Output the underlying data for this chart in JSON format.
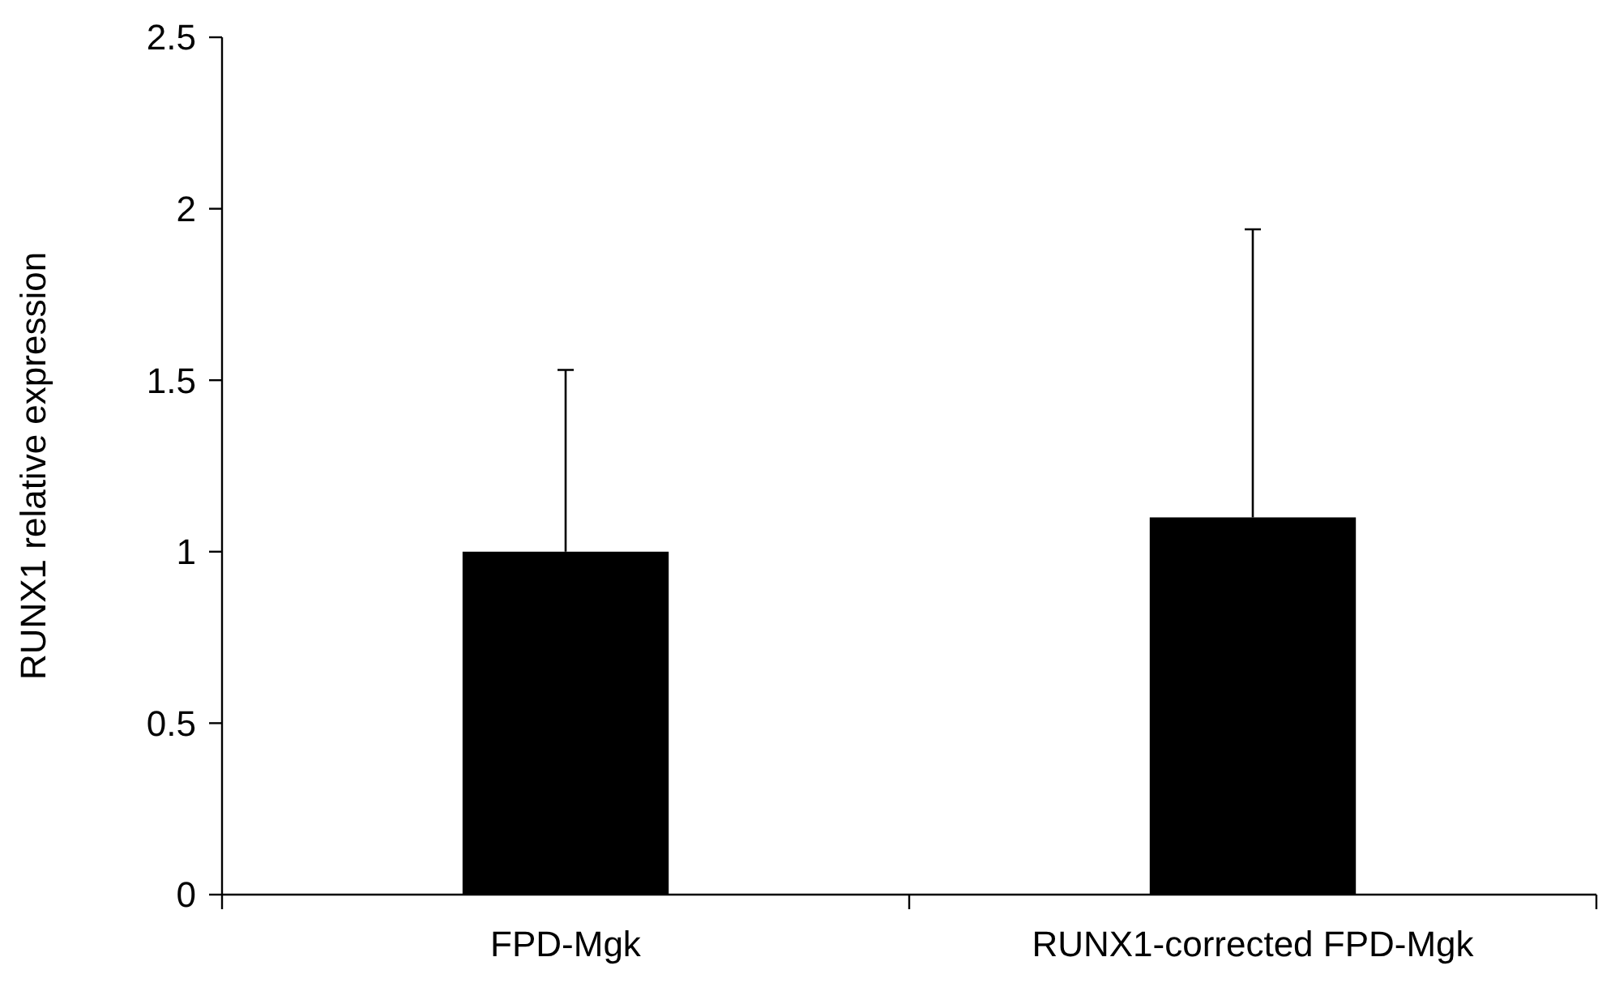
{
  "chart_data": {
    "type": "bar",
    "ylabel": "RUNX1 relative expression",
    "categories": [
      "FPD-Mgk",
      "RUNX1-corrected FPD-Mgk"
    ],
    "values": [
      1,
      1.1
    ],
    "color": "#000000",
    "errors": [
      [
        1,
        1.53
      ],
      [
        1.1,
        1.94
      ]
    ],
    "ylim": [
      0,
      2.5
    ],
    "yticks": [
      0,
      0.5,
      1,
      1.5,
      2,
      2.5
    ],
    "grid": false
  }
}
